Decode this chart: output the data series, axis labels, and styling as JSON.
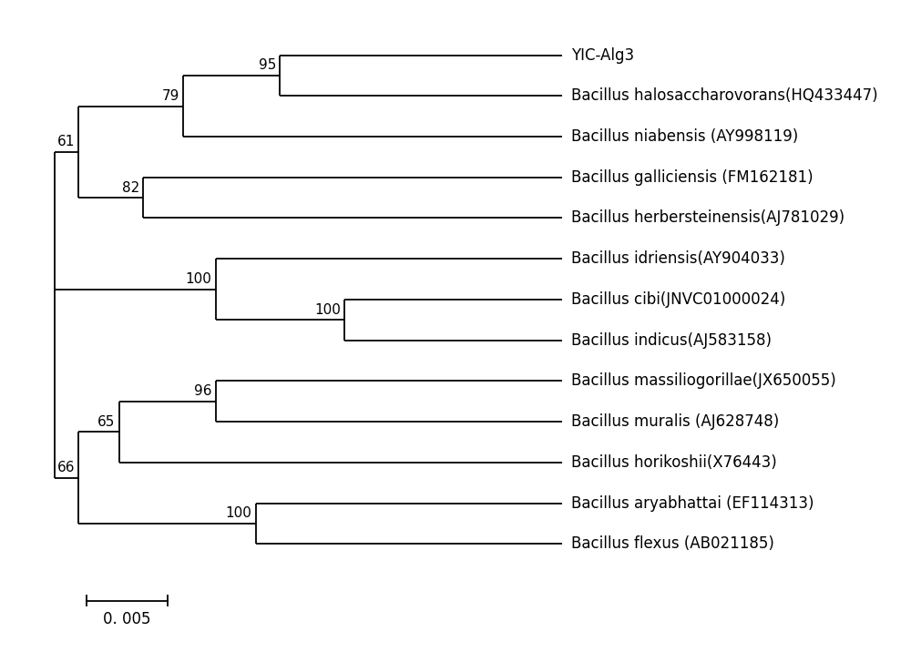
{
  "taxa": [
    "YIC-Alg3",
    "Bacillus halosaccharovorans(HQ433447)",
    "Bacillus niabensis (AY998119)",
    "Bacillus galliciensis (FM162181)",
    "Bacillus herbersteinensis(AJ781029)",
    "Bacillus idriensis(AY904033)",
    "Bacillus cibi(JNVC01000024)",
    "Bacillus indicus(AJ583158)",
    "Bacillus massiliogorillae(JX650055)",
    "Bacillus muralis (AJ628748)",
    "Bacillus horikoshii(X76443)",
    "Bacillus aryabhattai (EF114313)",
    "Bacillus flexus (AB021185)"
  ],
  "figsize": [
    10.0,
    7.16
  ],
  "dpi": 100,
  "bg_color": "#ffffff",
  "line_color": "#000000",
  "text_color": "#000000",
  "font_size": 12,
  "bootstrap_font_size": 11
}
